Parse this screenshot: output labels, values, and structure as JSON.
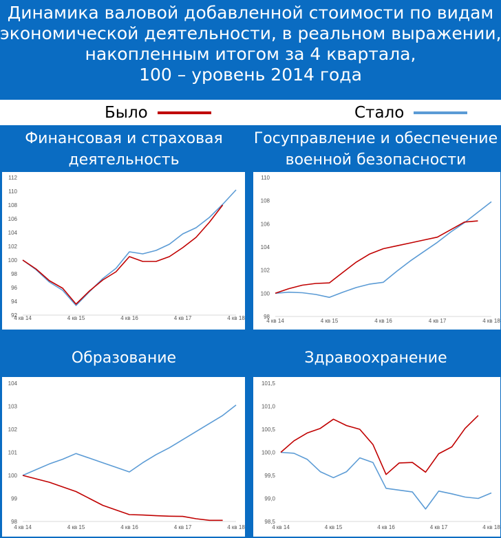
{
  "header": {
    "title_lines": [
      "Динамика валовой добавленной стоимости по видам",
      "экономической деятельности, в реальном выражении,",
      "накопленным итогом за 4 квартала,",
      "100 – уровень 2014 года"
    ]
  },
  "legend": {
    "before_label": "Было",
    "after_label": "Стало",
    "before_color": "#c00000",
    "after_color": "#5b9bd5"
  },
  "chart_data": [
    {
      "type": "line",
      "title_lines": [
        "Финансовая и страховая",
        "деятельность"
      ],
      "x": [
        "4 кв 14",
        "1 кв 15",
        "2 кв 15",
        "3 кв 15",
        "4 кв 15",
        "1 кв 16",
        "2 кв 16",
        "3 кв 16",
        "4 кв 16",
        "1 кв 17",
        "2 кв 17",
        "3 кв 17",
        "4 кв 17",
        "1 кв 18",
        "2 кв 18",
        "3 кв 18",
        "4 кв 18"
      ],
      "x_tick_labels": [
        "4 кв 14",
        "4 кв 15",
        "4 кв 16",
        "4 кв 17",
        "4 кв 18"
      ],
      "y_ticks": [
        "92",
        "94",
        "96",
        "98",
        "100",
        "102",
        "104",
        "106",
        "108",
        "110",
        "112"
      ],
      "ylim": [
        92,
        112
      ],
      "series": [
        {
          "name": "Было",
          "color": "#c00000",
          "values": [
            100,
            98.7,
            97.0,
            95.9,
            93.6,
            95.5,
            97.1,
            98.3,
            100.5,
            99.8,
            99.8,
            100.5,
            101.8,
            103.3,
            105.5,
            108.0,
            null
          ]
        },
        {
          "name": "Стало",
          "color": "#5b9bd5",
          "values": [
            100,
            98.6,
            96.8,
            95.6,
            93.4,
            95.4,
            97.3,
            98.8,
            101.2,
            100.9,
            101.4,
            102.3,
            103.8,
            104.7,
            106.2,
            108.1,
            110.2
          ]
        }
      ]
    },
    {
      "type": "line",
      "title_lines": [
        "Госуправление и обеспечение",
        "военной безопасности"
      ],
      "x": [
        "4 кв 14",
        "1 кв 15",
        "2 кв 15",
        "3 кв 15",
        "4 кв 15",
        "1 кв 16",
        "2 кв 16",
        "3 кв 16",
        "4 кв 16",
        "1 кв 17",
        "2 кв 17",
        "3 кв 17",
        "4 кв 17",
        "1 кв 18",
        "2 кв 18",
        "3 кв 18",
        "4 кв 18"
      ],
      "x_tick_labels": [
        "4 кв 14",
        "4 кв 15",
        "4 кв 16",
        "4 кв 17",
        "4 кв 18"
      ],
      "y_ticks": [
        "98",
        "100",
        "102",
        "104",
        "106",
        "108",
        "110"
      ],
      "ylim": [
        98,
        110
      ],
      "series": [
        {
          "name": "Было",
          "color": "#c00000",
          "values": [
            100,
            100.4,
            100.7,
            100.85,
            100.9,
            101.8,
            102.7,
            103.4,
            103.85,
            104.1,
            104.35,
            104.6,
            104.85,
            105.5,
            106.15,
            106.25,
            null
          ]
        },
        {
          "name": "Стало",
          "color": "#5b9bd5",
          "values": [
            100,
            100.1,
            100.05,
            99.9,
            99.65,
            100.1,
            100.5,
            100.8,
            100.95,
            101.9,
            102.8,
            103.6,
            104.4,
            105.3,
            106.1,
            107.0,
            107.9
          ]
        }
      ]
    },
    {
      "type": "line",
      "title_lines": [
        "Образование"
      ],
      "x": [
        "4 кв 14",
        "1 кв 15",
        "2 кв 15",
        "3 кв 15",
        "4 кв 15",
        "1 кв 16",
        "2 кв 16",
        "3 кв 16",
        "4 кв 16",
        "1 кв 17",
        "2 кв 17",
        "3 кв 17",
        "4 кв 17",
        "1 кв 18",
        "2 кв 18",
        "3 кв 18",
        "4 кв 18"
      ],
      "x_tick_labels": [
        "4 кв 14",
        "4 кв 15",
        "4 кв 16",
        "4 кв 17",
        "4 кв 18"
      ],
      "y_ticks": [
        "98",
        "99",
        "100",
        "101",
        "102",
        "103",
        "104"
      ],
      "ylim": [
        98,
        104
      ],
      "series": [
        {
          "name": "Было",
          "color": "#c00000",
          "values": [
            100,
            99.85,
            99.7,
            99.5,
            99.3,
            99.0,
            98.7,
            98.5,
            98.3,
            98.28,
            98.25,
            98.23,
            98.22,
            98.12,
            98.05,
            98.05,
            null
          ]
        },
        {
          "name": "Стало",
          "color": "#5b9bd5",
          "values": [
            100,
            100.25,
            100.5,
            100.7,
            100.95,
            100.75,
            100.55,
            100.35,
            100.15,
            100.55,
            100.9,
            101.2,
            101.55,
            101.9,
            102.25,
            102.6,
            103.05
          ]
        }
      ]
    },
    {
      "type": "line",
      "title_lines": [
        "Здравоохранение"
      ],
      "x": [
        "4 кв 14",
        "1 кв 15",
        "2 кв 15",
        "3 кв 15",
        "4 кв 15",
        "1 кв 16",
        "2 кв 16",
        "3 кв 16",
        "4 кв 16",
        "1 кв 17",
        "2 кв 17",
        "3 кв 17",
        "4 кв 17",
        "1 кв 18",
        "2 кв 18",
        "3 кв 18",
        "4 кв 18"
      ],
      "x_tick_labels": [
        "4 кв 14",
        "4 кв 15",
        "4 кв 16",
        "4 кв 17",
        "4 кв 18"
      ],
      "y_ticks": [
        "98,5",
        "99,0",
        "99,5",
        "100,0",
        "100,5",
        "101,0",
        "101,5"
      ],
      "ylim": [
        98.5,
        101.5
      ],
      "series": [
        {
          "name": "Было",
          "color": "#c00000",
          "values": [
            100.0,
            100.25,
            100.42,
            100.52,
            100.72,
            100.58,
            100.5,
            100.17,
            99.52,
            99.77,
            99.78,
            99.57,
            99.97,
            100.12,
            100.52,
            100.8,
            null
          ]
        },
        {
          "name": "Стало",
          "color": "#5b9bd5",
          "values": [
            100.0,
            99.98,
            99.85,
            99.58,
            99.45,
            99.58,
            99.88,
            99.78,
            99.22,
            99.18,
            99.14,
            98.77,
            99.16,
            99.1,
            99.03,
            99.0,
            99.12
          ]
        }
      ]
    }
  ]
}
